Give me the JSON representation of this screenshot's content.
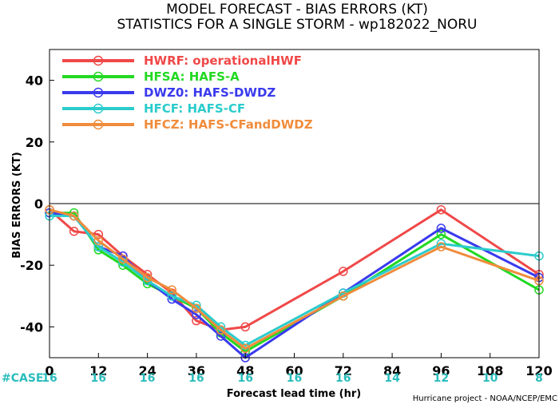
{
  "chart_data": {
    "type": "line",
    "title": "MODEL FORECAST - BIAS ERRORS (KT)",
    "subtitle": "STATISTICS FOR A SINGLE STORM - wp182022_NORU",
    "xlabel": "Forecast lead time (hr)",
    "ylabel": "BIAS ERRORS (KT)",
    "xlim": [
      0,
      120
    ],
    "ylim": [
      -50,
      50
    ],
    "x_ticks": [
      0,
      12,
      24,
      36,
      48,
      60,
      72,
      84,
      96,
      108,
      120
    ],
    "y_ticks": [
      -40,
      -20,
      0,
      20,
      40
    ],
    "x_tick_labels": [
      "0",
      "12",
      "24",
      "36",
      "48",
      "60",
      "72",
      "84",
      "96",
      "108",
      "120"
    ],
    "y_tick_labels": [
      "-40",
      "-20",
      "0",
      "20",
      "40"
    ],
    "zero_line": true,
    "grid": false,
    "legend_position": "top-left",
    "series": [
      {
        "name": "HWRF: operationalHWF",
        "color": "#f04848",
        "x": [
          0,
          6,
          12,
          18,
          24,
          30,
          36,
          42,
          48,
          72,
          96,
          120
        ],
        "y": [
          -2,
          -9,
          -10,
          -17,
          -23,
          -29,
          -38,
          -41,
          -40,
          -22,
          -2,
          -23
        ]
      },
      {
        "name": "HFSA: HAFS-A",
        "color": "#22d922",
        "x": [
          0,
          6,
          12,
          18,
          24,
          30,
          36,
          42,
          48,
          72,
          96,
          120
        ],
        "y": [
          -3,
          -3,
          -15,
          -20,
          -26,
          -30,
          -34,
          -42,
          -48,
          -30,
          -10,
          -28
        ]
      },
      {
        "name": "DWZ0: HAFS-DWDZ",
        "color": "#3a3aee",
        "x": [
          0,
          6,
          12,
          18,
          24,
          30,
          36,
          42,
          48,
          72,
          96,
          120
        ],
        "y": [
          -3,
          -4,
          -14,
          -17,
          -25,
          -31,
          -36,
          -43,
          -50,
          -29,
          -8,
          -24
        ]
      },
      {
        "name": "HFCF: HAFS-CF",
        "color": "#2bcccc",
        "x": [
          0,
          6,
          12,
          18,
          24,
          30,
          36,
          42,
          48,
          72,
          96,
          120
        ],
        "y": [
          -4,
          -4,
          -14,
          -19,
          -25,
          -30,
          -33,
          -40,
          -46,
          -29,
          -13,
          -17
        ]
      },
      {
        "name": "HFCZ: HAFS-CFandDWDZ",
        "color": "#f08c3c",
        "x": [
          0,
          6,
          12,
          18,
          24,
          30,
          36,
          42,
          48,
          72,
          96,
          120
        ],
        "y": [
          -2,
          -4,
          -12,
          -18,
          -24,
          -28,
          -34,
          -41,
          -47,
          -30,
          -14,
          -25
        ]
      }
    ],
    "case_label": "#CASE",
    "case_counts": [
      "16",
      "16",
      "16",
      "16",
      "16",
      "16",
      "16",
      "14",
      "12",
      "10",
      "8"
    ],
    "credit": "Hurricane project - NOAA/NCEP/EMC"
  }
}
